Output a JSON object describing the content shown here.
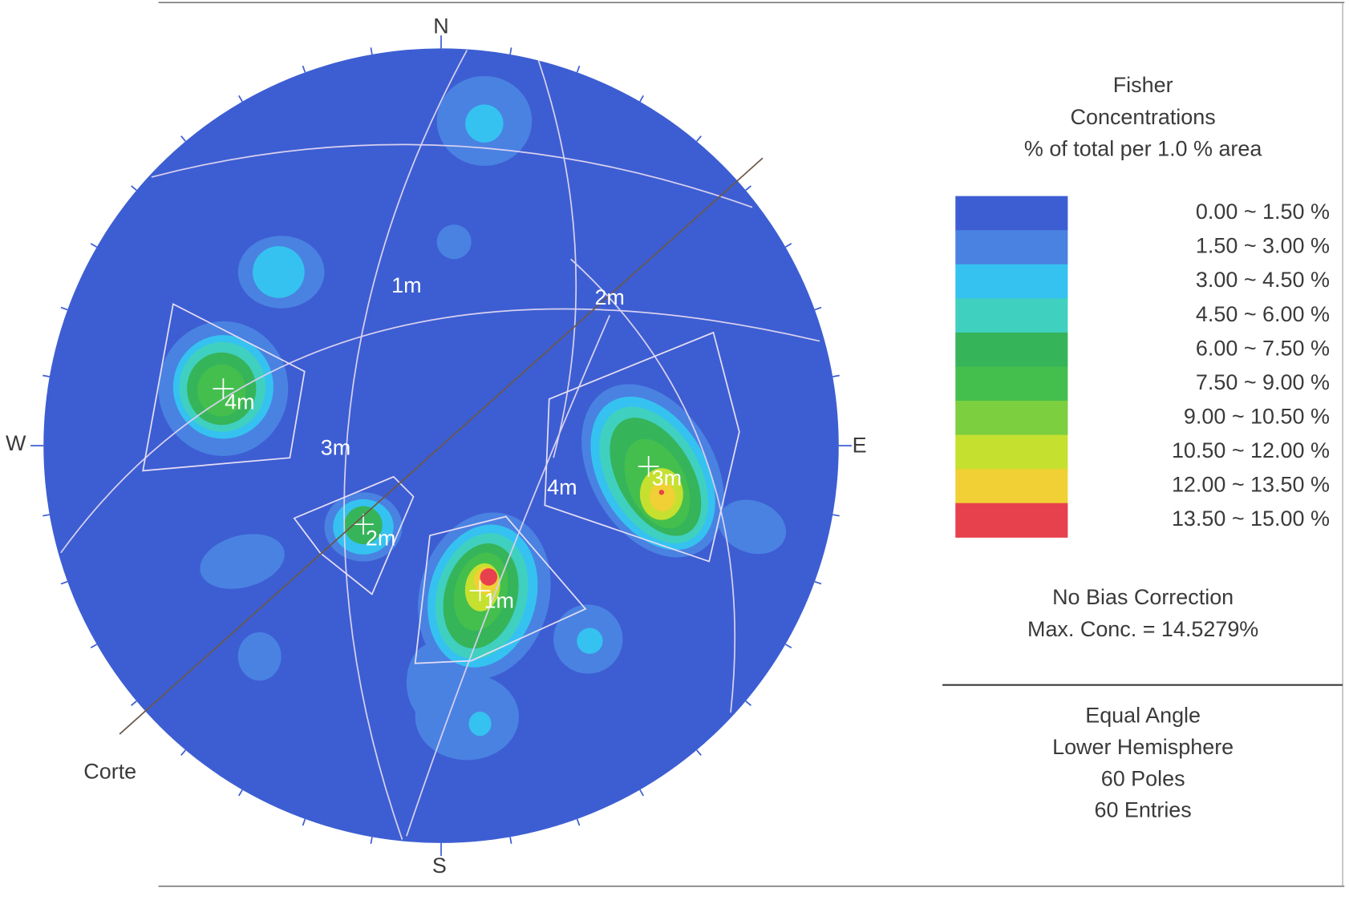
{
  "compass": {
    "north": "N",
    "south": "S",
    "west": "W",
    "east": "E"
  },
  "line_label": "Corte",
  "plane_labels": [
    "1m",
    "2m",
    "3m",
    "4m"
  ],
  "pole_labels": [
    "1m",
    "2m",
    "3m",
    "4m"
  ],
  "legend": {
    "title": [
      "Fisher",
      "Concentrations",
      "% of total per 1.0 % area"
    ],
    "ranges": [
      {
        "label": "0.00 ~ 1.50 %",
        "color": "#3d5ed2"
      },
      {
        "label": "1.50 ~ 3.00 %",
        "color": "#4a82e2"
      },
      {
        "label": "3.00 ~ 4.50 %",
        "color": "#35c2f0"
      },
      {
        "label": "4.50 ~ 6.00 %",
        "color": "#40d0c0"
      },
      {
        "label": "6.00 ~ 7.50 %",
        "color": "#36b45a"
      },
      {
        "label": "7.50 ~ 9.00 %",
        "color": "#44bf4e"
      },
      {
        "label": "9.00 ~ 10.50 %",
        "color": "#7ccf3e"
      },
      {
        "label": "10.50 ~ 12.00 %",
        "color": "#c6e030"
      },
      {
        "label": "12.00 ~ 13.50 %",
        "color": "#f0d034"
      },
      {
        "label": "13.50 ~ 15.00 %",
        "color": "#e8414e"
      }
    ]
  },
  "notes": [
    "No Bias Correction",
    "Max. Conc. = 14.5279%"
  ],
  "projection": [
    "Equal Angle",
    "Lower Hemisphere",
    "60 Poles",
    "60 Entries"
  ]
}
